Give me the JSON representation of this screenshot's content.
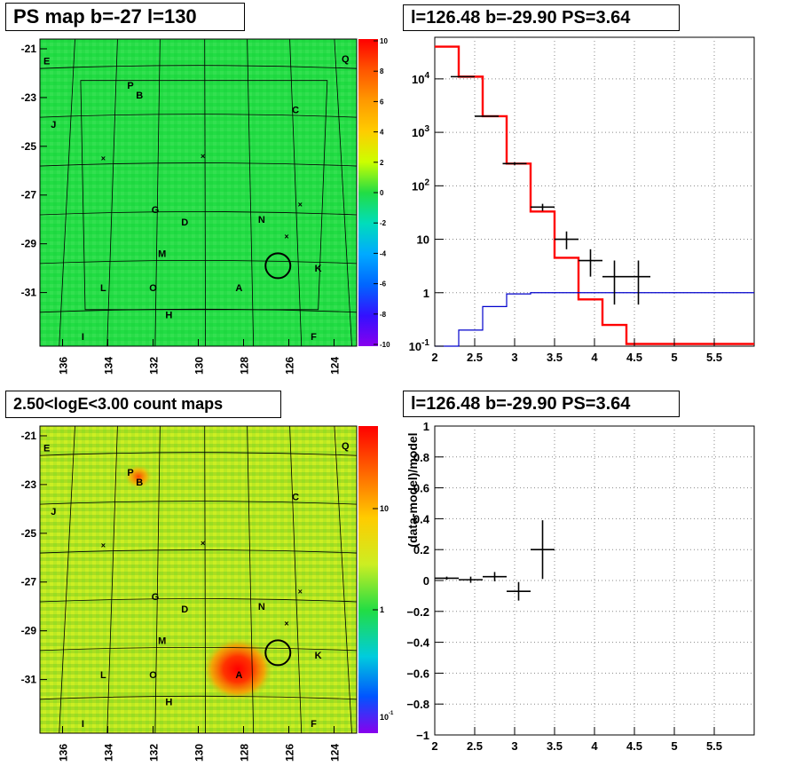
{
  "panels": {
    "tl_title": "PS map b=-27 l=130",
    "tr_title": "l=126.48 b=-29.90 PS=3.64",
    "bl_title": "2.50<logE<3.00 count maps",
    "br_title": "l=126.48 b=-29.90 PS=3.64"
  },
  "colors": {
    "data": "#000000",
    "model": "#ff0000",
    "background": "#0000cc",
    "map_top_bg": "#22dd44",
    "map_bottom_bg": "#aadd22"
  },
  "maps": {
    "x_ticks": [
      "136",
      "134",
      "132",
      "130",
      "128",
      "126",
      "124"
    ],
    "y_ticks": [
      "-21",
      "-23",
      "-25",
      "-27",
      "-29",
      "-31"
    ],
    "sources": [
      {
        "label": "E",
        "l": 136.7,
        "b": -21.5
      },
      {
        "label": "Q",
        "l": 123.5,
        "b": -21.4
      },
      {
        "label": "P",
        "l": 133.0,
        "b": -22.5
      },
      {
        "label": "B",
        "l": 132.6,
        "b": -22.9
      },
      {
        "label": "C",
        "l": 125.7,
        "b": -23.5
      },
      {
        "label": "J",
        "l": 136.4,
        "b": -24.1
      },
      {
        "label": "G",
        "l": 131.9,
        "b": -27.6
      },
      {
        "label": "D",
        "l": 130.6,
        "b": -28.1
      },
      {
        "label": "N",
        "l": 127.2,
        "b": -28.0
      },
      {
        "label": "M",
        "l": 131.6,
        "b": -29.4
      },
      {
        "label": "K",
        "l": 124.7,
        "b": -30.0
      },
      {
        "label": "L",
        "l": 134.2,
        "b": -30.8
      },
      {
        "label": "O",
        "l": 132.0,
        "b": -30.8
      },
      {
        "label": "A",
        "l": 128.2,
        "b": -30.8
      },
      {
        "label": "H",
        "l": 131.3,
        "b": -31.9
      },
      {
        "label": "I",
        "l": 135.1,
        "b": -32.8
      },
      {
        "label": "F",
        "l": 124.9,
        "b": -32.8
      }
    ],
    "crosses": [
      {
        "l": 134.2,
        "b": -25.5
      },
      {
        "l": 129.8,
        "b": -25.4
      },
      {
        "l": 125.5,
        "b": -27.4
      },
      {
        "l": 126.1,
        "b": -28.7
      }
    ],
    "circle": {
      "l": 126.48,
      "b": -29.9
    },
    "top_scale": {
      "ticks": [
        "10",
        "8",
        "6",
        "4",
        "2",
        "0",
        "-2",
        "-4",
        "-6",
        "-8",
        "-10"
      ]
    },
    "bottom_scale": {
      "ticks": [
        "10",
        "1"
      ],
      "minor_label": "10",
      "minor_exp": "-1"
    }
  },
  "chart_data": [
    {
      "type": "line",
      "title": "l=126.48 b=-29.90 PS=3.64",
      "xlim": [
        2,
        6
      ],
      "ylim": [
        0.1,
        60000
      ],
      "yscale": "log",
      "grid": true,
      "x_tick_labels": [
        "2",
        "2.5",
        "3",
        "3.5",
        "4",
        "4.5",
        "5",
        "5.5"
      ],
      "y_tick_labels": [
        {
          "base": "10",
          "exp": "4",
          "v": 10000
        },
        {
          "base": "10",
          "exp": "3",
          "v": 1000
        },
        {
          "base": "10",
          "exp": "2",
          "v": 100
        },
        {
          "base": "10",
          "exp": "",
          "v": 10
        },
        {
          "base": "1",
          "exp": "",
          "v": 1
        },
        {
          "base": "10",
          "exp": "-1",
          "v": 0.1
        }
      ],
      "bin_edges": [
        2.0,
        2.3,
        2.6,
        2.9,
        3.2,
        3.5,
        3.8,
        4.1,
        4.4,
        4.7,
        5.0,
        5.3,
        5.6,
        6.0
      ],
      "series": [
        {
          "kind": "model",
          "values": [
            40000,
            11000,
            2000,
            260,
            33,
            4.5,
            0.75,
            0.25,
            0.11,
            0.11,
            0.11,
            0.11,
            0.11
          ]
        },
        {
          "kind": "background",
          "values": [
            0.08,
            0.2,
            0.55,
            0.95,
            1.0,
            1.0,
            1.0,
            1.0,
            1.0,
            1.0,
            1.0,
            1.0,
            1.0
          ]
        },
        {
          "kind": "data",
          "points": [
            {
              "x": 2.35,
              "y": 11000,
              "xerr": 0.15,
              "ylo": 11000,
              "yhi": 11000
            },
            {
              "x": 2.65,
              "y": 2000,
              "xerr": 0.15,
              "ylo": 2000,
              "yhi": 2000
            },
            {
              "x": 3.0,
              "y": 260,
              "xerr": 0.15,
              "ylo": 245,
              "yhi": 275
            },
            {
              "x": 3.35,
              "y": 40,
              "xerr": 0.15,
              "ylo": 34,
              "yhi": 46
            },
            {
              "x": 3.65,
              "y": 10,
              "xerr": 0.15,
              "ylo": 6.5,
              "yhi": 14
            },
            {
              "x": 3.95,
              "y": 4,
              "xerr": 0.15,
              "ylo": 2,
              "yhi": 6.5
            },
            {
              "x": 4.25,
              "y": 2,
              "xerr": 0.15,
              "ylo": 0.6,
              "yhi": 4
            },
            {
              "x": 4.55,
              "y": 2,
              "xerr": 0.15,
              "ylo": 0.6,
              "yhi": 4
            }
          ]
        }
      ]
    },
    {
      "type": "scatter",
      "title": "l=126.48 b=-29.90 PS=3.64",
      "ylabel": "(data-model)/model",
      "xlim": [
        2,
        6
      ],
      "ylim": [
        -1,
        1
      ],
      "grid": true,
      "x_tick_labels": [
        "2",
        "2.5",
        "3",
        "3.5",
        "4",
        "4.5",
        "5",
        "5.5"
      ],
      "y_tick_labels": [
        "1",
        "0.8",
        "0.6",
        "0.4",
        "0.2",
        "0",
        "−0.2",
        "−0.4",
        "−0.6",
        "−0.8",
        "−1"
      ],
      "points": [
        {
          "x": 2.15,
          "y": 0.015,
          "xerr": 0.15,
          "yerr": 0.01
        },
        {
          "x": 2.45,
          "y": 0.005,
          "xerr": 0.15,
          "yerr": 0.02
        },
        {
          "x": 2.75,
          "y": 0.025,
          "xerr": 0.15,
          "yerr": 0.03
        },
        {
          "x": 3.05,
          "y": -0.07,
          "xerr": 0.15,
          "yerr": 0.06
        },
        {
          "x": 3.35,
          "y": 0.2,
          "xerr": 0.15,
          "yerr": 0.19
        }
      ]
    }
  ]
}
